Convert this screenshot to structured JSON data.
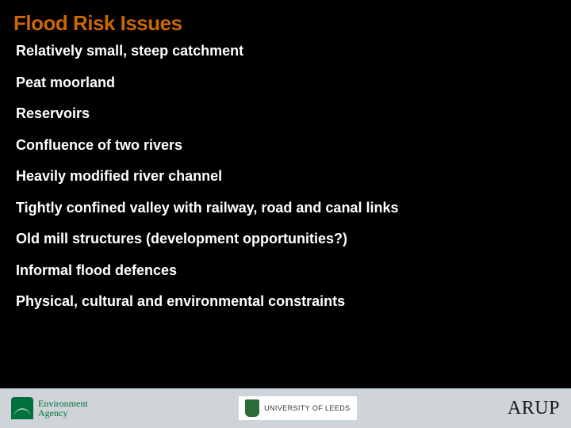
{
  "title": "Flood Risk Issues",
  "bullets": [
    "Relatively small, steep catchment",
    "Peat moorland",
    "Reservoirs",
    "Confluence of two rivers",
    "Heavily modified river channel",
    "Tightly confined valley with railway, road and canal links",
    "Old mill structures (development opportunities?)",
    "Informal flood defences",
    "Physical, cultural and environmental constraints"
  ],
  "footer": {
    "ea_line1": "Environment",
    "ea_line2": "Agency",
    "uol_text": "UNIVERSITY OF LEEDS",
    "arup_text": "ARUP"
  },
  "colors": {
    "background": "#000000",
    "title": "#cc6600",
    "body_text": "#ffffff",
    "footer_bg": "#cfd4d9",
    "ea_green": "#00703c",
    "arup_text": "#1a1a1a"
  },
  "typography": {
    "title_fontsize": 26,
    "title_weight": 900,
    "bullet_fontsize": 18,
    "bullet_weight": 700
  }
}
